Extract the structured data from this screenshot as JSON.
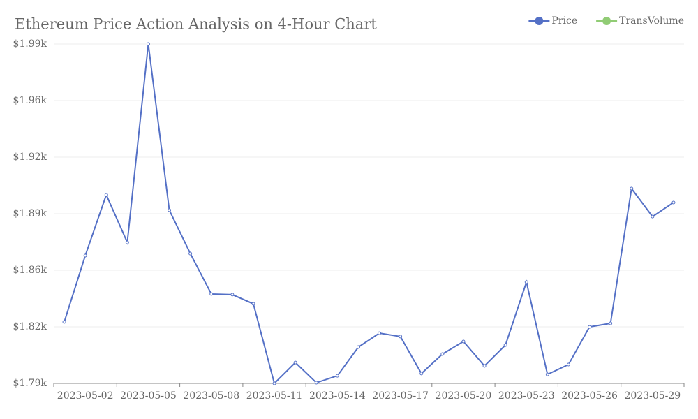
{
  "chart_data": {
    "type": "line",
    "title": "Ethereum Price Action Analysis on 4-Hour Chart",
    "categories": [
      null,
      "2023-05-02",
      null,
      null,
      "2023-05-05",
      null,
      null,
      "2023-05-08",
      null,
      null,
      "2023-05-11",
      null,
      null,
      "2023-05-14",
      null,
      null,
      "2023-05-17",
      null,
      null,
      "2023-05-20",
      null,
      null,
      "2023-05-23",
      null,
      null,
      "2023-05-26",
      null,
      null,
      "2023-05-29",
      null
    ],
    "series": [
      {
        "name": "Price",
        "color": "#5470c6",
        "values": [
          1826.2,
          1865.3,
          1901.1,
          1873.1,
          1990,
          1892.1,
          1866.5,
          1842.7,
          1842.3,
          1836.9,
          1790,
          1802.3,
          1790.4,
          1794.5,
          1811.4,
          1819.6,
          1817.6,
          1795.8,
          1807.3,
          1814.7,
          1800.3,
          1812.6,
          1849.7,
          1795.3,
          1801.1,
          1823.3,
          1825.4,
          1904.8,
          1888.3,
          1896.6
        ]
      },
      {
        "name": "TransVolume",
        "color": "#91cc75"
      }
    ],
    "ylim": [
      1790,
      1990
    ],
    "yticks": [
      {
        "value": 1790,
        "label": "$1.79k"
      },
      {
        "value": 1823.33,
        "label": "$1.82k"
      },
      {
        "value": 1856.67,
        "label": "$1.86k"
      },
      {
        "value": 1890,
        "label": "$1.89k"
      },
      {
        "value": 1923.33,
        "label": "$1.92k"
      },
      {
        "value": 1956.67,
        "label": "$1.96k"
      },
      {
        "value": 1990,
        "label": "$1.99k"
      }
    ],
    "grid": true,
    "legend": "top-right"
  }
}
